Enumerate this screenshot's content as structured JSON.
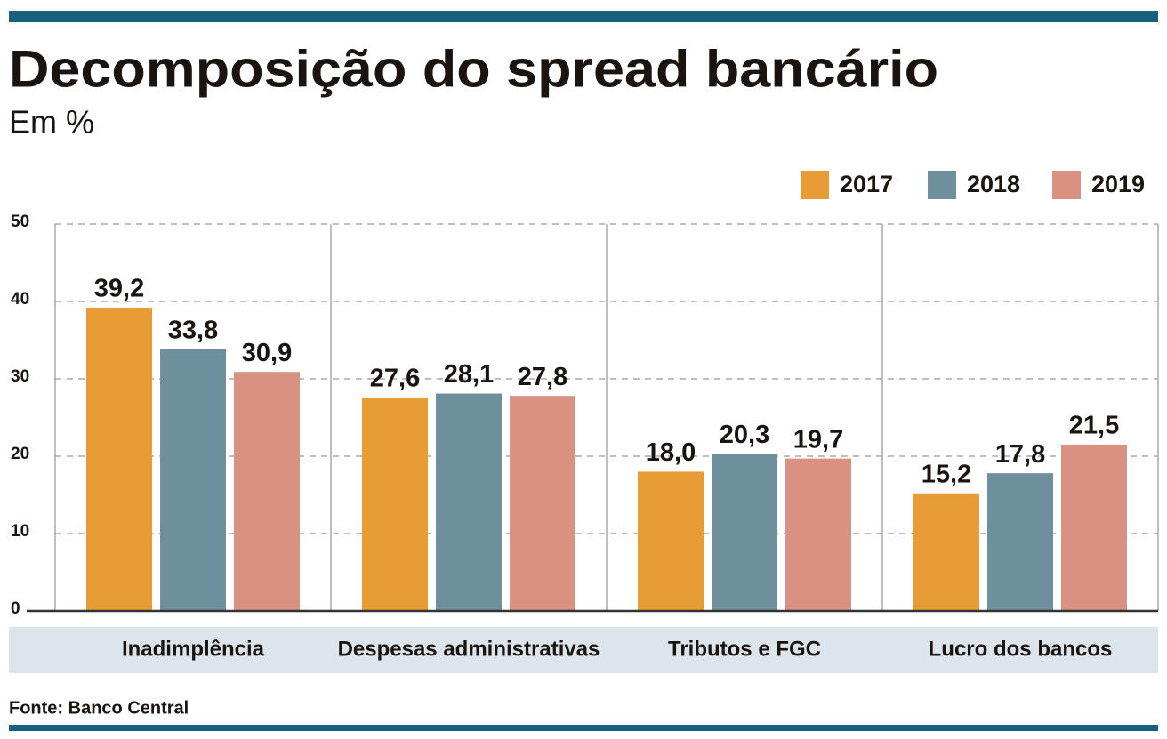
{
  "chart_data": {
    "type": "bar",
    "title": "Decomposição do spread bancário",
    "subtitle": "Em %",
    "source": "Fonte: Banco Central",
    "categories": [
      "Inadimplência",
      "Despesas administrativas",
      "Tributos e FGC",
      "Lucro dos bancos"
    ],
    "series": [
      {
        "name": "2017",
        "color": "#e89c35",
        "values": [
          39.2,
          27.6,
          18.0,
          15.2
        ],
        "value_labels": [
          "39,2",
          "27,6",
          "18,0",
          "15,2"
        ]
      },
      {
        "name": "2018",
        "color": "#6e8f9c",
        "values": [
          33.8,
          28.1,
          20.3,
          17.8
        ],
        "value_labels": [
          "33,8",
          "28,1",
          "20,3",
          "17,8"
        ]
      },
      {
        "name": "2019",
        "color": "#d99282",
        "values": [
          30.9,
          27.8,
          19.7,
          21.5
        ],
        "value_labels": [
          "30,9",
          "27,8",
          "19,7",
          "21,5"
        ]
      }
    ],
    "ylim": [
      0,
      50
    ],
    "yticks": [
      0,
      10,
      20,
      30,
      40,
      50
    ],
    "grid": true,
    "legend": "top-right"
  }
}
